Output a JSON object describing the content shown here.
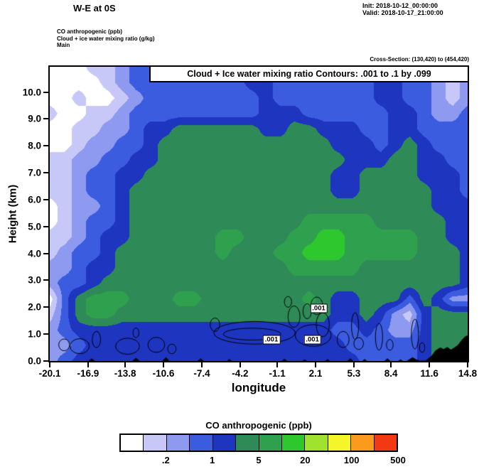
{
  "header": {
    "title": "W-E at 0S",
    "init": "Init: 2018-10-12_00:00:00",
    "valid": "Valid: 2018-10-17_21:00:00"
  },
  "legend_block": {
    "line1": "CO anthropogenic   (ppb)",
    "line2": "Cloud + ice water mixing ratio   (g/kg)",
    "line3": "Main"
  },
  "cross_section": "Cross-Section: (130,420) to (454,420)",
  "plot": {
    "contour_title": "Cloud + Ice water mixing ratio Contours: .001 to .1 by .099",
    "ylabel": "Height (km)",
    "xlabel": "longitude",
    "y_ticks": [
      "0.0",
      "1.0",
      "2.0",
      "3.0",
      "4.0",
      "5.0",
      "6.0",
      "7.0",
      "8.0",
      "9.0",
      "10.0"
    ],
    "x_ticks": [
      "-20.1",
      "-16.9",
      "-13.8",
      "-10.6",
      "-7.4",
      "-4.2",
      "-1.1",
      "2.1",
      "5.3",
      "8.4",
      "11.6",
      "14.8"
    ]
  },
  "colorbar": {
    "title": "CO anthropogenic  (ppb)",
    "labels": [
      ".2",
      "1",
      "5",
      "20",
      "100",
      "500"
    ]
  },
  "chart_data": {
    "type": "heatmap",
    "title": "W-E at 0S",
    "fill_field": "CO anthropogenic (ppb)",
    "overlay_field": "Cloud + ice water mixing ratio (g/kg)",
    "xlabel": "longitude",
    "ylabel": "Height (km)",
    "xlim": [
      -20.1,
      14.8
    ],
    "ylim": [
      0,
      10.94
    ],
    "x_tick_values": [
      -20.1,
      -16.9,
      -13.8,
      -10.6,
      -7.4,
      -4.2,
      -1.1,
      2.1,
      5.3,
      8.4,
      11.6,
      14.8
    ],
    "y_tick_values": [
      0,
      1,
      2,
      3,
      4,
      5,
      6,
      7,
      8,
      9,
      10
    ],
    "levels_ppb": [
      0.1,
      0.2,
      0.5,
      1,
      2,
      5,
      10,
      20,
      50,
      100,
      200,
      500
    ],
    "palette": [
      "#ffffff",
      "#c8c8f8",
      "#8d9af0",
      "#3c5ce0",
      "#1e35c0",
      "#2e8b57",
      "#2fa14e",
      "#2ec82e",
      "#a0e32f",
      "#f5f52a",
      "#fb9b1d",
      "#f23913"
    ],
    "grid_units": "palette level index 1-12; rows top (10.9 km) to bottom (0 km); cols -20.1 to 14.8 lon",
    "grid_levels": [
      [
        1,
        1,
        1,
        2,
        2,
        3,
        4,
        4,
        4,
        4,
        4,
        4,
        4,
        4,
        5,
        5,
        5,
        4,
        4,
        4,
        4,
        4,
        4,
        5,
        5,
        4,
        4,
        3,
        3,
        3
      ],
      [
        1,
        1,
        1,
        1,
        2,
        3,
        4,
        4,
        4,
        4,
        4,
        4,
        4,
        4,
        5,
        5,
        4,
        4,
        4,
        4,
        4,
        4,
        4,
        5,
        5,
        4,
        4,
        3,
        2,
        3
      ],
      [
        1,
        1,
        2,
        1,
        1,
        2,
        3,
        4,
        4,
        4,
        4,
        4,
        4,
        4,
        4,
        5,
        4,
        4,
        4,
        4,
        4,
        4,
        4,
        5,
        5,
        4,
        4,
        3,
        2,
        3
      ],
      [
        2,
        1,
        1,
        2,
        2,
        3,
        4,
        4,
        4,
        4,
        4,
        4,
        4,
        4,
        4,
        5,
        5,
        5,
        4,
        4,
        4,
        4,
        4,
        4,
        5,
        5,
        4,
        3,
        3,
        4
      ],
      [
        1,
        1,
        2,
        2,
        3,
        3,
        4,
        5,
        5,
        6,
        6,
        6,
        6,
        6,
        6,
        5,
        5,
        6,
        6,
        5,
        5,
        5,
        4,
        4,
        5,
        5,
        4,
        4,
        4,
        4
      ],
      [
        1,
        1,
        2,
        3,
        3,
        4,
        4,
        5,
        6,
        6,
        6,
        6,
        6,
        6,
        6,
        6,
        6,
        6,
        6,
        6,
        5,
        5,
        5,
        4,
        5,
        6,
        5,
        4,
        4,
        4
      ],
      [
        2,
        2,
        3,
        3,
        4,
        4,
        5,
        5,
        6,
        6,
        6,
        6,
        6,
        6,
        6,
        6,
        6,
        6,
        6,
        6,
        6,
        5,
        5,
        5,
        6,
        6,
        5,
        5,
        4,
        4
      ],
      [
        2,
        2,
        3,
        4,
        4,
        5,
        5,
        6,
        6,
        6,
        6,
        6,
        6,
        6,
        6,
        6,
        6,
        6,
        6,
        6,
        5,
        5,
        6,
        6,
        6,
        6,
        5,
        5,
        5,
        4
      ],
      [
        2,
        2,
        3,
        4,
        4,
        5,
        6,
        6,
        6,
        6,
        6,
        6,
        6,
        6,
        6,
        6,
        6,
        6,
        6,
        6,
        5,
        5,
        6,
        6,
        6,
        6,
        6,
        5,
        5,
        4
      ],
      [
        1,
        2,
        3,
        3,
        4,
        5,
        6,
        6,
        6,
        6,
        6,
        6,
        6,
        6,
        6,
        6,
        6,
        6,
        6,
        6,
        6,
        6,
        6,
        6,
        6,
        6,
        6,
        5,
        5,
        5
      ],
      [
        1,
        2,
        3,
        4,
        4,
        5,
        6,
        6,
        6,
        6,
        6,
        6,
        6,
        6,
        6,
        6,
        6,
        6,
        7,
        7,
        7,
        7,
        7,
        6,
        6,
        6,
        6,
        6,
        5,
        5
      ],
      [
        2,
        2,
        3,
        4,
        5,
        5,
        6,
        6,
        6,
        6,
        6,
        6,
        7,
        7,
        6,
        6,
        6,
        7,
        7,
        8,
        8,
        7,
        7,
        7,
        7,
        7,
        6,
        6,
        5,
        5
      ],
      [
        2,
        3,
        4,
        4,
        5,
        6,
        6,
        6,
        6,
        6,
        6,
        6,
        7,
        6,
        6,
        6,
        7,
        7,
        8,
        8,
        8,
        7,
        7,
        7,
        7,
        7,
        6,
        6,
        6,
        5
      ],
      [
        3,
        3,
        4,
        5,
        5,
        6,
        6,
        6,
        6,
        6,
        6,
        6,
        6,
        6,
        6,
        6,
        6,
        7,
        7,
        7,
        7,
        7,
        6,
        6,
        6,
        6,
        6,
        6,
        6,
        5
      ],
      [
        3,
        4,
        4,
        5,
        6,
        6,
        6,
        6,
        6,
        6,
        6,
        6,
        6,
        6,
        6,
        6,
        6,
        6,
        6,
        6,
        6,
        6,
        6,
        6,
        6,
        6,
        6,
        6,
        6,
        5
      ],
      [
        1,
        4,
        6,
        7,
        7,
        7,
        6,
        6,
        6,
        7,
        7,
        6,
        6,
        6,
        6,
        6,
        6,
        6,
        7,
        6,
        5,
        5,
        6,
        6,
        6,
        4,
        6,
        5,
        3,
        3
      ],
      [
        2,
        4,
        6,
        7,
        7,
        6,
        6,
        6,
        6,
        6,
        6,
        6,
        6,
        6,
        6,
        6,
        6,
        6,
        6,
        6,
        5,
        5,
        6,
        5,
        3,
        2,
        5,
        6,
        6,
        6
      ],
      [
        3,
        4,
        5,
        5,
        5,
        5,
        5,
        5,
        5,
        5,
        5,
        5,
        5,
        5,
        5,
        5,
        5,
        5,
        5,
        5,
        4,
        4,
        5,
        4,
        3,
        3,
        5,
        6,
        6,
        6
      ],
      [
        3,
        3,
        4,
        5,
        5,
        5,
        5,
        5,
        5,
        5,
        5,
        5,
        5,
        5,
        5,
        5,
        5,
        5,
        5,
        5,
        5,
        4,
        4,
        4,
        4,
        4,
        5,
        6,
        6,
        6
      ],
      [
        3,
        4,
        5,
        5,
        5,
        5,
        5,
        5,
        5,
        5,
        5,
        5,
        5,
        5,
        5,
        5,
        5,
        5,
        5,
        5,
        5,
        5,
        4,
        4,
        4,
        4,
        5,
        6,
        6,
        6
      ]
    ],
    "terrain": [
      [
        9.7,
        0
      ],
      [
        10.2,
        0.14
      ],
      [
        10.5,
        0.06
      ],
      [
        10.8,
        0.01
      ],
      [
        11.3,
        0.02
      ],
      [
        11.8,
        0.2
      ],
      [
        12.1,
        0.38
      ],
      [
        12.5,
        0.5
      ],
      [
        12.8,
        0.44
      ],
      [
        13.1,
        0.52
      ],
      [
        13.4,
        0.42
      ],
      [
        13.7,
        0.5
      ],
      [
        14.0,
        0.6
      ],
      [
        14.3,
        0.78
      ],
      [
        14.6,
        0.92
      ],
      [
        14.8,
        0.95
      ]
    ],
    "terrain_bumps": [
      [
        -16.6,
        0.1,
        0.25
      ],
      [
        -12.9,
        0.12,
        0.3
      ],
      [
        -10.4,
        0.14,
        0.3
      ],
      [
        -7.5,
        0.1,
        0.25
      ],
      [
        -5.1,
        0.07,
        0.2
      ],
      [
        -0.5,
        0.08,
        0.25
      ],
      [
        1.2,
        0.06,
        0.2
      ],
      [
        3.1,
        0.07,
        0.2
      ],
      [
        5.0,
        0.1,
        0.25
      ],
      [
        6.2,
        0.07,
        0.2
      ],
      [
        8.1,
        0.1,
        0.25
      ],
      [
        9.2,
        0.06,
        0.2
      ]
    ],
    "cloud_contours": {
      "levels": ".001 to .1 by .099",
      "ellipses": [
        [
          -18.9,
          0.6,
          0.45,
          0.22
        ],
        [
          -17.6,
          0.55,
          0.8,
          0.28
        ],
        [
          -16.2,
          0.8,
          0.35,
          0.3
        ],
        [
          -13.6,
          0.55,
          1.0,
          0.3
        ],
        [
          -12.9,
          1.05,
          0.25,
          0.18
        ],
        [
          -11.2,
          0.6,
          0.7,
          0.28
        ],
        [
          -9.9,
          0.45,
          0.35,
          0.18
        ],
        [
          -6.3,
          1.35,
          0.4,
          0.25
        ],
        [
          -3.0,
          1.05,
          3.4,
          0.42
        ],
        [
          -3.2,
          1.0,
          2.4,
          0.22
        ],
        [
          -0.2,
          2.2,
          0.3,
          0.2
        ],
        [
          0.3,
          1.65,
          0.5,
          0.4
        ],
        [
          1.4,
          1.85,
          0.35,
          0.28
        ],
        [
          2.2,
          2.05,
          0.5,
          0.33
        ],
        [
          2.7,
          1.35,
          0.55,
          0.45
        ],
        [
          1.9,
          0.95,
          1.5,
          0.4
        ],
        [
          4.4,
          0.8,
          0.5,
          0.3
        ],
        [
          5.4,
          1.3,
          0.3,
          0.5
        ],
        [
          5.7,
          0.65,
          0.4,
          0.22
        ],
        [
          7.4,
          0.9,
          0.3,
          0.5
        ],
        [
          8.3,
          0.6,
          0.28,
          0.2
        ],
        [
          10.4,
          1.0,
          0.3,
          0.55
        ],
        [
          11.0,
          0.5,
          0.22,
          0.18
        ]
      ],
      "labels": [
        {
          "text": ".001",
          "lon": 2.25,
          "km": 2.02
        },
        {
          "text": ".001",
          "lon": -1.7,
          "km": 0.84
        },
        {
          "text": ".001",
          "lon": 1.72,
          "km": 0.84
        }
      ]
    }
  }
}
